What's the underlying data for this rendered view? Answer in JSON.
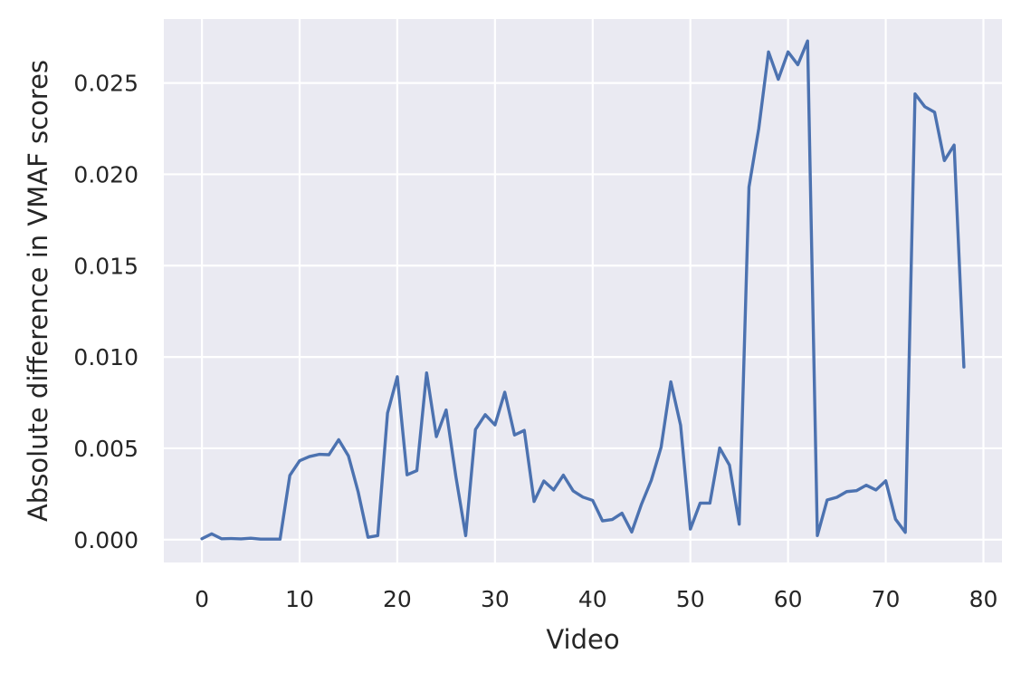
{
  "chart_data": {
    "type": "line",
    "title": "",
    "xlabel": "Video",
    "ylabel": "Absolute difference in VMAF scores",
    "xlim": [
      -3.9,
      81.9
    ],
    "ylim": [
      -0.00125,
      0.0285
    ],
    "xticks": [
      0,
      10,
      20,
      30,
      40,
      50,
      60,
      70,
      80
    ],
    "xtick_labels": [
      "0",
      "10",
      "20",
      "30",
      "40",
      "50",
      "60",
      "70",
      "80"
    ],
    "yticks": [
      0.0,
      0.005,
      0.01,
      0.015,
      0.02,
      0.025
    ],
    "ytick_labels": [
      "0.000",
      "0.005",
      "0.010",
      "0.015",
      "0.020",
      "0.025"
    ],
    "grid": true,
    "background": "#eaeaf2",
    "grid_color": "#ffffff",
    "series": [
      {
        "color": "#4c72b0",
        "x": [
          0,
          1,
          2,
          3,
          4,
          5,
          6,
          7,
          8,
          9,
          10,
          11,
          12,
          13,
          14,
          15,
          16,
          17,
          18,
          19,
          20,
          21,
          22,
          23,
          24,
          25,
          26,
          27,
          28,
          29,
          30,
          31,
          32,
          33,
          34,
          35,
          36,
          37,
          38,
          39,
          40,
          41,
          42,
          43,
          44,
          45,
          46,
          47,
          48,
          49,
          50,
          51,
          52,
          53,
          54,
          55,
          56,
          57,
          58,
          59,
          60,
          61,
          62,
          63,
          64,
          65,
          66,
          67,
          68,
          69,
          70,
          71,
          72,
          73,
          74,
          75,
          76,
          77,
          78
        ],
        "values": [
          5e-05,
          0.00032,
          5e-05,
          6e-05,
          4e-05,
          8e-05,
          3e-05,
          3e-05,
          3e-05,
          0.00352,
          0.00432,
          0.00455,
          0.00467,
          0.00465,
          0.00547,
          0.00458,
          0.0026,
          0.00013,
          0.00022,
          0.00693,
          0.00892,
          0.00355,
          0.00378,
          0.00913,
          0.00564,
          0.0071,
          0.00344,
          0.00022,
          0.00603,
          0.00684,
          0.00628,
          0.00807,
          0.00573,
          0.00598,
          0.00209,
          0.00321,
          0.00272,
          0.00353,
          0.00267,
          0.00233,
          0.00215,
          0.00103,
          0.0011,
          0.00145,
          0.00042,
          0.00195,
          0.00325,
          0.00505,
          0.00864,
          0.00626,
          0.00058,
          0.002,
          0.002,
          0.00502,
          0.00408,
          0.00085,
          0.0193,
          0.0225,
          0.0267,
          0.0252,
          0.0267,
          0.026,
          0.0273,
          0.00022,
          0.00217,
          0.00232,
          0.00263,
          0.00268,
          0.00298,
          0.00272,
          0.00322,
          0.00112,
          0.0004,
          0.0244,
          0.0237,
          0.0234,
          0.02075,
          0.0216,
          0.00945
        ]
      }
    ]
  }
}
